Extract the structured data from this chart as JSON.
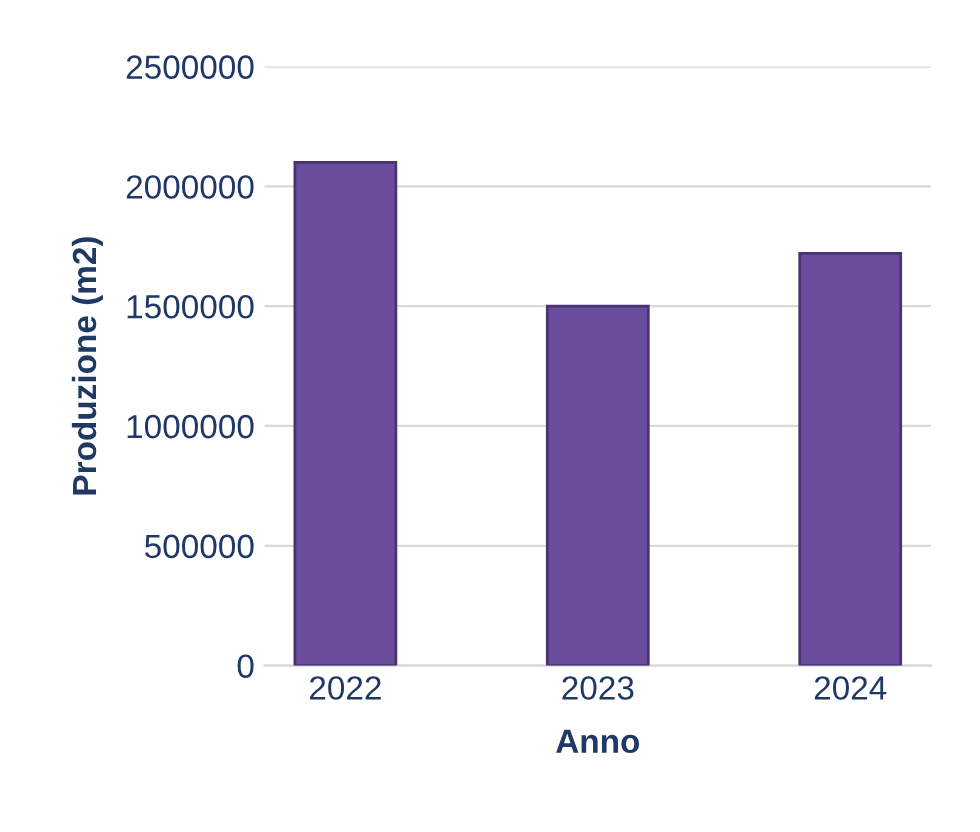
{
  "chart_data": {
    "type": "bar",
    "categories": [
      "2022",
      "2023",
      "2024"
    ],
    "values": [
      2100000,
      1500000,
      1720000
    ],
    "color": "#6a4c9c",
    "xlabel": "Anno",
    "ylabel": "Produzione (m2)",
    "ylim": [
      0,
      2500000
    ],
    "yticks": [
      0,
      500000,
      1000000,
      1500000,
      2000000,
      2500000
    ],
    "grid": "y"
  }
}
